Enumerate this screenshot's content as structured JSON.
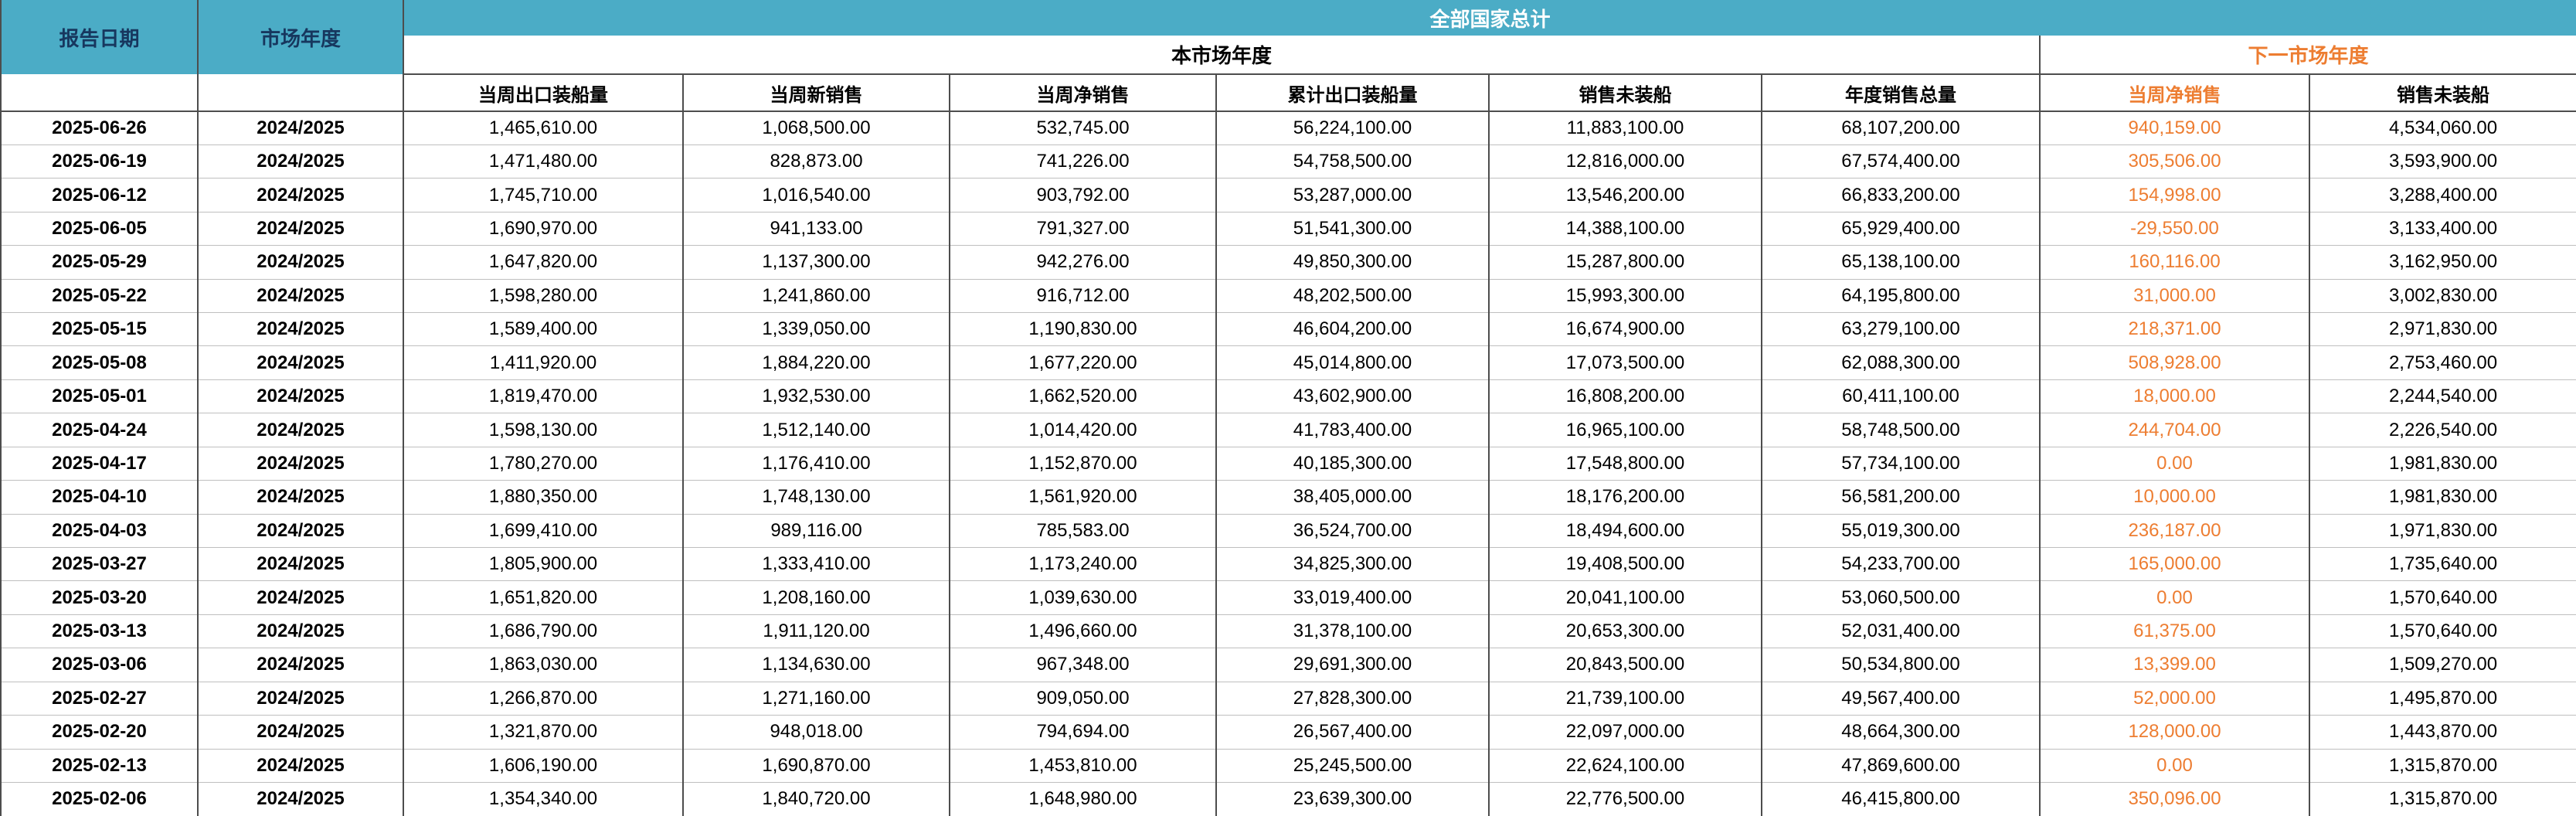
{
  "colors": {
    "header_teal": "#4BACC6",
    "accent_orange": "#ED7D31",
    "header_dark_text": "#17375E"
  },
  "header": {
    "report_date": "报告日期",
    "market_year": "市场年度",
    "group_total": "全部国家总计",
    "group_current": "本市场年度",
    "group_next": "下一市场年度",
    "current_cols": [
      "当周出口装船量",
      "当周新销售",
      "当周净销售",
      "累计出口装船量",
      "销售未装船",
      "年度销售总量"
    ],
    "next_cols": [
      "当周净销售",
      "销售未装船"
    ]
  },
  "rows": [
    {
      "date": "2025-06-26",
      "year": "2024/2025",
      "values": [
        "1,465,610.00",
        "1,068,500.00",
        "532,745.00",
        "56,224,100.00",
        "11,883,100.00",
        "68,107,200.00",
        "940,159.00",
        "4,534,060.00"
      ]
    },
    {
      "date": "2025-06-19",
      "year": "2024/2025",
      "values": [
        "1,471,480.00",
        "828,873.00",
        "741,226.00",
        "54,758,500.00",
        "12,816,000.00",
        "67,574,400.00",
        "305,506.00",
        "3,593,900.00"
      ]
    },
    {
      "date": "2025-06-12",
      "year": "2024/2025",
      "values": [
        "1,745,710.00",
        "1,016,540.00",
        "903,792.00",
        "53,287,000.00",
        "13,546,200.00",
        "66,833,200.00",
        "154,998.00",
        "3,288,400.00"
      ]
    },
    {
      "date": "2025-06-05",
      "year": "2024/2025",
      "values": [
        "1,690,970.00",
        "941,133.00",
        "791,327.00",
        "51,541,300.00",
        "14,388,100.00",
        "65,929,400.00",
        "-29,550.00",
        "3,133,400.00"
      ]
    },
    {
      "date": "2025-05-29",
      "year": "2024/2025",
      "values": [
        "1,647,820.00",
        "1,137,300.00",
        "942,276.00",
        "49,850,300.00",
        "15,287,800.00",
        "65,138,100.00",
        "160,116.00",
        "3,162,950.00"
      ]
    },
    {
      "date": "2025-05-22",
      "year": "2024/2025",
      "values": [
        "1,598,280.00",
        "1,241,860.00",
        "916,712.00",
        "48,202,500.00",
        "15,993,300.00",
        "64,195,800.00",
        "31,000.00",
        "3,002,830.00"
      ]
    },
    {
      "date": "2025-05-15",
      "year": "2024/2025",
      "values": [
        "1,589,400.00",
        "1,339,050.00",
        "1,190,830.00",
        "46,604,200.00",
        "16,674,900.00",
        "63,279,100.00",
        "218,371.00",
        "2,971,830.00"
      ]
    },
    {
      "date": "2025-05-08",
      "year": "2024/2025",
      "values": [
        "1,411,920.00",
        "1,884,220.00",
        "1,677,220.00",
        "45,014,800.00",
        "17,073,500.00",
        "62,088,300.00",
        "508,928.00",
        "2,753,460.00"
      ]
    },
    {
      "date": "2025-05-01",
      "year": "2024/2025",
      "values": [
        "1,819,470.00",
        "1,932,530.00",
        "1,662,520.00",
        "43,602,900.00",
        "16,808,200.00",
        "60,411,100.00",
        "18,000.00",
        "2,244,540.00"
      ]
    },
    {
      "date": "2025-04-24",
      "year": "2024/2025",
      "values": [
        "1,598,130.00",
        "1,512,140.00",
        "1,014,420.00",
        "41,783,400.00",
        "16,965,100.00",
        "58,748,500.00",
        "244,704.00",
        "2,226,540.00"
      ]
    },
    {
      "date": "2025-04-17",
      "year": "2024/2025",
      "values": [
        "1,780,270.00",
        "1,176,410.00",
        "1,152,870.00",
        "40,185,300.00",
        "17,548,800.00",
        "57,734,100.00",
        "0.00",
        "1,981,830.00"
      ]
    },
    {
      "date": "2025-04-10",
      "year": "2024/2025",
      "values": [
        "1,880,350.00",
        "1,748,130.00",
        "1,561,920.00",
        "38,405,000.00",
        "18,176,200.00",
        "56,581,200.00",
        "10,000.00",
        "1,981,830.00"
      ]
    },
    {
      "date": "2025-04-03",
      "year": "2024/2025",
      "values": [
        "1,699,410.00",
        "989,116.00",
        "785,583.00",
        "36,524,700.00",
        "18,494,600.00",
        "55,019,300.00",
        "236,187.00",
        "1,971,830.00"
      ]
    },
    {
      "date": "2025-03-27",
      "year": "2024/2025",
      "values": [
        "1,805,900.00",
        "1,333,410.00",
        "1,173,240.00",
        "34,825,300.00",
        "19,408,500.00",
        "54,233,700.00",
        "165,000.00",
        "1,735,640.00"
      ]
    },
    {
      "date": "2025-03-20",
      "year": "2024/2025",
      "values": [
        "1,651,820.00",
        "1,208,160.00",
        "1,039,630.00",
        "33,019,400.00",
        "20,041,100.00",
        "53,060,500.00",
        "0.00",
        "1,570,640.00"
      ]
    },
    {
      "date": "2025-03-13",
      "year": "2024/2025",
      "values": [
        "1,686,790.00",
        "1,911,120.00",
        "1,496,660.00",
        "31,378,100.00",
        "20,653,300.00",
        "52,031,400.00",
        "61,375.00",
        "1,570,640.00"
      ]
    },
    {
      "date": "2025-03-06",
      "year": "2024/2025",
      "values": [
        "1,863,030.00",
        "1,134,630.00",
        "967,348.00",
        "29,691,300.00",
        "20,843,500.00",
        "50,534,800.00",
        "13,399.00",
        "1,509,270.00"
      ]
    },
    {
      "date": "2025-02-27",
      "year": "2024/2025",
      "values": [
        "1,266,870.00",
        "1,271,160.00",
        "909,050.00",
        "27,828,300.00",
        "21,739,100.00",
        "49,567,400.00",
        "52,000.00",
        "1,495,870.00"
      ]
    },
    {
      "date": "2025-02-20",
      "year": "2024/2025",
      "values": [
        "1,321,870.00",
        "948,018.00",
        "794,694.00",
        "26,567,400.00",
        "22,097,000.00",
        "48,664,300.00",
        "128,000.00",
        "1,443,870.00"
      ]
    },
    {
      "date": "2025-02-13",
      "year": "2024/2025",
      "values": [
        "1,606,190.00",
        "1,690,870.00",
        "1,453,810.00",
        "25,245,500.00",
        "22,624,100.00",
        "47,869,600.00",
        "0.00",
        "1,315,870.00"
      ]
    },
    {
      "date": "2025-02-06",
      "year": "2024/2025",
      "values": [
        "1,354,340.00",
        "1,840,720.00",
        "1,648,980.00",
        "23,639,300.00",
        "22,776,500.00",
        "46,415,800.00",
        "350,096.00",
        "1,315,870.00"
      ]
    }
  ]
}
